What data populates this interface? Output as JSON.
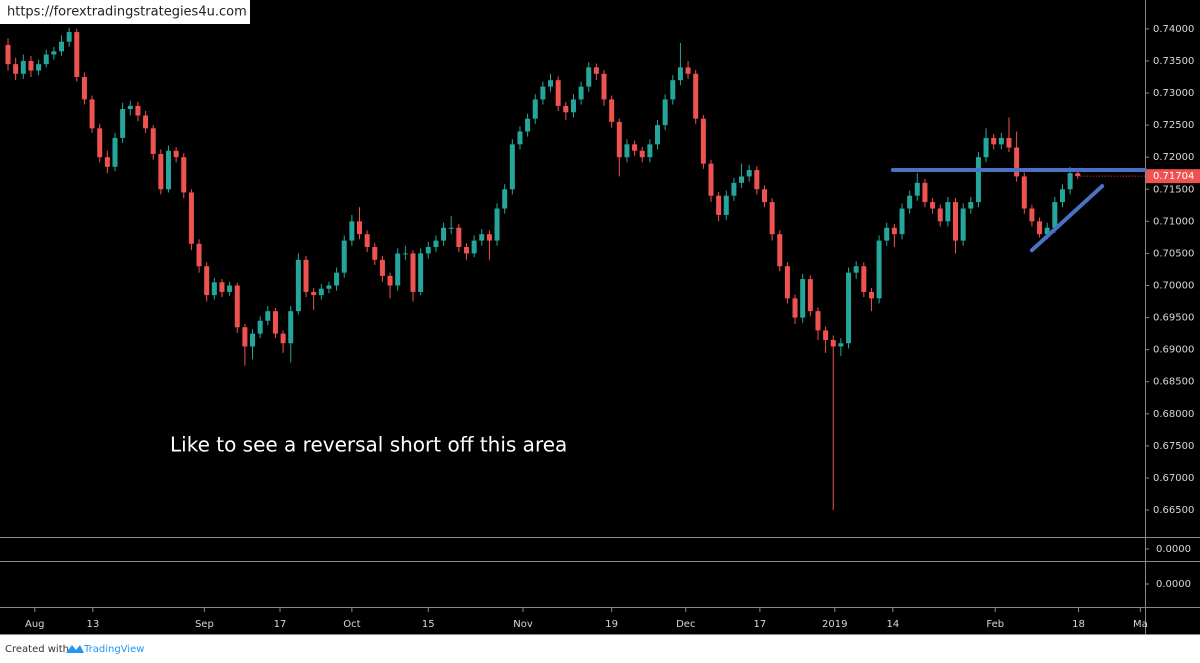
{
  "chart_data": {
    "type": "candlestick",
    "source": "https://forextradingstrategies4u.com",
    "annotation": "Like to see a reversal short off this area",
    "footer": "Created with",
    "brand": "TradingView",
    "up_color": "#26a69a",
    "down_color": "#ef5350",
    "last_price": 0.71704,
    "ylim": [
      0.6608,
      0.7445
    ],
    "yticks": [
      {
        "value": 0.74,
        "label": "0.74000"
      },
      {
        "value": 0.735,
        "label": "0.73500"
      },
      {
        "value": 0.73,
        "label": "0.73000"
      },
      {
        "value": 0.725,
        "label": "0.72500"
      },
      {
        "value": 0.72,
        "label": "0.72000"
      },
      {
        "value": 0.715,
        "label": "0.71500"
      },
      {
        "value": 0.71,
        "label": "0.71000"
      },
      {
        "value": 0.705,
        "label": "0.70500"
      },
      {
        "value": 0.7,
        "label": "0.70000"
      },
      {
        "value": 0.695,
        "label": "0.69500"
      },
      {
        "value": 0.69,
        "label": "0.69000"
      },
      {
        "value": 0.685,
        "label": "0.68500"
      },
      {
        "value": 0.68,
        "label": "0.68000"
      },
      {
        "value": 0.675,
        "label": "0.67500"
      },
      {
        "value": 0.67,
        "label": "0.67000"
      },
      {
        "value": 0.665,
        "label": "0.66500"
      }
    ],
    "indicator_ticks": [
      {
        "value": 0,
        "label": "0.0000"
      },
      {
        "value": 0,
        "label": "0.0000"
      }
    ],
    "xlim": [
      -1.05,
      148.8
    ],
    "xticks": [
      {
        "value": 3.5,
        "label": "Aug"
      },
      {
        "value": 11.1,
        "label": "13"
      },
      {
        "value": 25.7,
        "label": "Sep"
      },
      {
        "value": 35.6,
        "label": "17"
      },
      {
        "value": 45.0,
        "label": "Oct"
      },
      {
        "value": 55.0,
        "label": "15"
      },
      {
        "value": 67.4,
        "label": "Nov"
      },
      {
        "value": 79.0,
        "label": "19"
      },
      {
        "value": 88.7,
        "label": "Dec"
      },
      {
        "value": 98.4,
        "label": "17"
      },
      {
        "value": 108.2,
        "label": "2019"
      },
      {
        "value": 115.8,
        "label": "14"
      },
      {
        "value": 129.2,
        "label": "Feb"
      },
      {
        "value": 140.1,
        "label": "18"
      },
      {
        "value": 148.2,
        "label": "Ma"
      }
    ],
    "drawings": [
      {
        "color": "#4a72c4",
        "x": [
          115.8,
          148.8
        ],
        "y": [
          0.718,
          0.718
        ]
      },
      {
        "color": "#4a72c4",
        "x": [
          134.0,
          143.2
        ],
        "y": [
          0.7055,
          0.7155
        ]
      }
    ],
    "ohlc": [
      [
        0.7375,
        0.7385,
        0.7335,
        0.7345
      ],
      [
        0.7345,
        0.7355,
        0.732,
        0.733
      ],
      [
        0.733,
        0.736,
        0.7322,
        0.735
      ],
      [
        0.735,
        0.7358,
        0.7325,
        0.7335
      ],
      [
        0.7335,
        0.7352,
        0.7328,
        0.7345
      ],
      [
        0.7345,
        0.7368,
        0.734,
        0.736
      ],
      [
        0.736,
        0.7372,
        0.7352,
        0.7365
      ],
      [
        0.7365,
        0.739,
        0.7358,
        0.738
      ],
      [
        0.738,
        0.7402,
        0.7372,
        0.7395
      ],
      [
        0.7395,
        0.74,
        0.7318,
        0.7325
      ],
      [
        0.7325,
        0.7332,
        0.7282,
        0.729
      ],
      [
        0.729,
        0.7296,
        0.7238,
        0.7245
      ],
      [
        0.7245,
        0.7252,
        0.7192,
        0.72
      ],
      [
        0.72,
        0.721,
        0.7175,
        0.7185
      ],
      [
        0.7185,
        0.7238,
        0.7178,
        0.723
      ],
      [
        0.723,
        0.7285,
        0.7222,
        0.7275
      ],
      [
        0.7275,
        0.7288,
        0.7265,
        0.728
      ],
      [
        0.728,
        0.7286,
        0.7256,
        0.7265
      ],
      [
        0.7265,
        0.7272,
        0.7238,
        0.7245
      ],
      [
        0.7245,
        0.725,
        0.7196,
        0.7205
      ],
      [
        0.7205,
        0.7212,
        0.7142,
        0.715
      ],
      [
        0.715,
        0.7218,
        0.7145,
        0.721
      ],
      [
        0.721,
        0.7216,
        0.7192,
        0.72
      ],
      [
        0.72,
        0.7206,
        0.7136,
        0.7145
      ],
      [
        0.7145,
        0.715,
        0.7055,
        0.7065
      ],
      [
        0.7065,
        0.7072,
        0.702,
        0.703
      ],
      [
        0.703,
        0.7036,
        0.6975,
        0.6985
      ],
      [
        0.6985,
        0.7012,
        0.6978,
        0.7005
      ],
      [
        0.7005,
        0.701,
        0.6982,
        0.699
      ],
      [
        0.699,
        0.7006,
        0.6984,
        0.7
      ],
      [
        0.7,
        0.7004,
        0.6926,
        0.6935
      ],
      [
        0.6935,
        0.694,
        0.6875,
        0.6905
      ],
      [
        0.6905,
        0.6932,
        0.6885,
        0.6925
      ],
      [
        0.6925,
        0.6952,
        0.6918,
        0.6945
      ],
      [
        0.6945,
        0.6968,
        0.6938,
        0.696
      ],
      [
        0.696,
        0.6965,
        0.6918,
        0.6925
      ],
      [
        0.6925,
        0.693,
        0.6895,
        0.691
      ],
      [
        0.691,
        0.6968,
        0.688,
        0.696
      ],
      [
        0.696,
        0.705,
        0.6955,
        0.704
      ],
      [
        0.704,
        0.7046,
        0.6982,
        0.699
      ],
      [
        0.699,
        0.6996,
        0.6962,
        0.6985
      ],
      [
        0.6985,
        0.7002,
        0.6978,
        0.6995
      ],
      [
        0.6995,
        0.7006,
        0.6988,
        0.7
      ],
      [
        0.7,
        0.7028,
        0.6992,
        0.702
      ],
      [
        0.702,
        0.7078,
        0.7012,
        0.707
      ],
      [
        0.707,
        0.711,
        0.7062,
        0.71
      ],
      [
        0.71,
        0.7122,
        0.7072,
        0.708
      ],
      [
        0.708,
        0.7086,
        0.7052,
        0.706
      ],
      [
        0.706,
        0.7066,
        0.7032,
        0.704
      ],
      [
        0.704,
        0.7046,
        0.7006,
        0.7015
      ],
      [
        0.7015,
        0.702,
        0.698,
        0.7
      ],
      [
        0.7,
        0.7058,
        0.6992,
        0.705
      ],
      [
        0.705,
        0.7062,
        0.704,
        0.705
      ],
      [
        0.705,
        0.7055,
        0.6975,
        0.699
      ],
      [
        0.699,
        0.7058,
        0.6985,
        0.705
      ],
      [
        0.705,
        0.7068,
        0.7042,
        0.706
      ],
      [
        0.706,
        0.7078,
        0.7052,
        0.707
      ],
      [
        0.707,
        0.7098,
        0.7062,
        0.709
      ],
      [
        0.709,
        0.7108,
        0.708,
        0.709
      ],
      [
        0.709,
        0.7096,
        0.7052,
        0.706
      ],
      [
        0.706,
        0.7066,
        0.704,
        0.705
      ],
      [
        0.705,
        0.7078,
        0.7044,
        0.707
      ],
      [
        0.707,
        0.7088,
        0.7062,
        0.708
      ],
      [
        0.708,
        0.7086,
        0.704,
        0.707
      ],
      [
        0.707,
        0.7128,
        0.7062,
        0.712
      ],
      [
        0.712,
        0.7158,
        0.7112,
        0.715
      ],
      [
        0.715,
        0.7228,
        0.7142,
        0.722
      ],
      [
        0.722,
        0.7248,
        0.7212,
        0.724
      ],
      [
        0.724,
        0.7268,
        0.7232,
        0.726
      ],
      [
        0.726,
        0.7298,
        0.7252,
        0.729
      ],
      [
        0.729,
        0.7318,
        0.7282,
        0.731
      ],
      [
        0.731,
        0.733,
        0.7302,
        0.732
      ],
      [
        0.732,
        0.7326,
        0.7272,
        0.728
      ],
      [
        0.728,
        0.7286,
        0.7258,
        0.727
      ],
      [
        0.727,
        0.7298,
        0.7262,
        0.729
      ],
      [
        0.729,
        0.7318,
        0.7282,
        0.731
      ],
      [
        0.731,
        0.7348,
        0.7302,
        0.734
      ],
      [
        0.734,
        0.7346,
        0.732,
        0.733
      ],
      [
        0.733,
        0.7336,
        0.728,
        0.729
      ],
      [
        0.729,
        0.7296,
        0.7246,
        0.7255
      ],
      [
        0.7255,
        0.726,
        0.717,
        0.72
      ],
      [
        0.72,
        0.7228,
        0.7192,
        0.722
      ],
      [
        0.722,
        0.7226,
        0.7202,
        0.721
      ],
      [
        0.721,
        0.7216,
        0.7192,
        0.72
      ],
      [
        0.72,
        0.7228,
        0.7192,
        0.722
      ],
      [
        0.722,
        0.7258,
        0.7212,
        0.725
      ],
      [
        0.725,
        0.7298,
        0.7242,
        0.729
      ],
      [
        0.729,
        0.7328,
        0.7282,
        0.732
      ],
      [
        0.732,
        0.7378,
        0.7312,
        0.734
      ],
      [
        0.734,
        0.735,
        0.7322,
        0.733
      ],
      [
        0.733,
        0.7336,
        0.7252,
        0.726
      ],
      [
        0.726,
        0.7266,
        0.7182,
        0.719
      ],
      [
        0.719,
        0.7196,
        0.713,
        0.714
      ],
      [
        0.714,
        0.7146,
        0.71,
        0.711
      ],
      [
        0.711,
        0.7148,
        0.7102,
        0.714
      ],
      [
        0.714,
        0.7168,
        0.7132,
        0.716
      ],
      [
        0.716,
        0.719,
        0.7152,
        0.717
      ],
      [
        0.717,
        0.7188,
        0.7162,
        0.718
      ],
      [
        0.718,
        0.7186,
        0.7142,
        0.715
      ],
      [
        0.715,
        0.7156,
        0.7122,
        0.713
      ],
      [
        0.713,
        0.7136,
        0.707,
        0.708
      ],
      [
        0.708,
        0.7086,
        0.7022,
        0.703
      ],
      [
        0.703,
        0.7036,
        0.6972,
        0.698
      ],
      [
        0.698,
        0.6986,
        0.694,
        0.695
      ],
      [
        0.695,
        0.7018,
        0.6942,
        0.701
      ],
      [
        0.701,
        0.7016,
        0.6952,
        0.696
      ],
      [
        0.696,
        0.6966,
        0.6915,
        0.693
      ],
      [
        0.693,
        0.6936,
        0.6895,
        0.6915
      ],
      [
        0.6915,
        0.6922,
        0.665,
        0.6905
      ],
      [
        0.6905,
        0.6918,
        0.689,
        0.691
      ],
      [
        0.691,
        0.7028,
        0.6902,
        0.702
      ],
      [
        0.702,
        0.7038,
        0.701,
        0.703
      ],
      [
        0.703,
        0.7036,
        0.6982,
        0.699
      ],
      [
        0.699,
        0.6996,
        0.696,
        0.698
      ],
      [
        0.698,
        0.7078,
        0.6972,
        0.707
      ],
      [
        0.707,
        0.7098,
        0.7062,
        0.709
      ],
      [
        0.709,
        0.7096,
        0.706,
        0.708
      ],
      [
        0.708,
        0.7128,
        0.7072,
        0.712
      ],
      [
        0.712,
        0.7148,
        0.7112,
        0.714
      ],
      [
        0.714,
        0.7175,
        0.7132,
        0.716
      ],
      [
        0.716,
        0.7166,
        0.7122,
        0.713
      ],
      [
        0.713,
        0.7136,
        0.7112,
        0.712
      ],
      [
        0.712,
        0.7126,
        0.7092,
        0.71
      ],
      [
        0.71,
        0.7138,
        0.7092,
        0.713
      ],
      [
        0.713,
        0.7136,
        0.705,
        0.707
      ],
      [
        0.707,
        0.7128,
        0.7062,
        0.712
      ],
      [
        0.712,
        0.7138,
        0.7112,
        0.713
      ],
      [
        0.713,
        0.7208,
        0.7122,
        0.72
      ],
      [
        0.72,
        0.7245,
        0.7192,
        0.723
      ],
      [
        0.723,
        0.7236,
        0.7212,
        0.722
      ],
      [
        0.722,
        0.7238,
        0.7212,
        0.723
      ],
      [
        0.723,
        0.7262,
        0.7208,
        0.7215
      ],
      [
        0.7215,
        0.724,
        0.7162,
        0.717
      ],
      [
        0.717,
        0.7176,
        0.7112,
        0.712
      ],
      [
        0.712,
        0.7126,
        0.7092,
        0.71
      ],
      [
        0.71,
        0.7106,
        0.7075,
        0.708
      ],
      [
        0.708,
        0.7098,
        0.7072,
        0.709
      ],
      [
        0.709,
        0.7138,
        0.7082,
        0.713
      ],
      [
        0.713,
        0.7158,
        0.7122,
        0.715
      ],
      [
        0.715,
        0.7185,
        0.7142,
        0.7175
      ],
      [
        0.7175,
        0.718,
        0.7166,
        0.71704
      ]
    ]
  }
}
